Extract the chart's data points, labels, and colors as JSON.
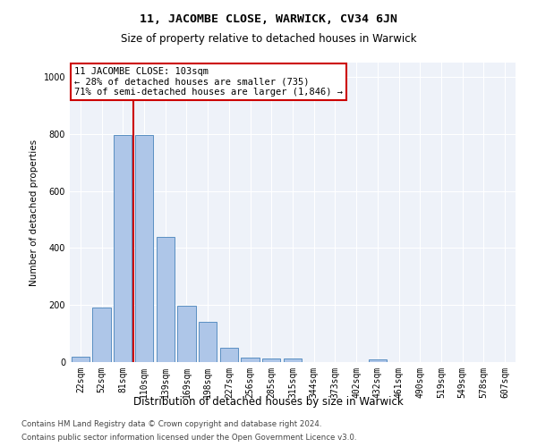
{
  "title1": "11, JACOMBE CLOSE, WARWICK, CV34 6JN",
  "title2": "Size of property relative to detached houses in Warwick",
  "xlabel": "Distribution of detached houses by size in Warwick",
  "ylabel": "Number of detached properties",
  "bins": [
    "22sqm",
    "52sqm",
    "81sqm",
    "110sqm",
    "139sqm",
    "169sqm",
    "198sqm",
    "227sqm",
    "256sqm",
    "285sqm",
    "315sqm",
    "344sqm",
    "373sqm",
    "402sqm",
    "432sqm",
    "461sqm",
    "490sqm",
    "519sqm",
    "549sqm",
    "578sqm",
    "607sqm"
  ],
  "values": [
    18,
    190,
    795,
    795,
    440,
    197,
    142,
    50,
    16,
    12,
    12,
    0,
    0,
    0,
    10,
    0,
    0,
    0,
    0,
    0,
    0
  ],
  "bar_color": "#aec6e8",
  "bar_edge_color": "#5a8fc2",
  "annotation_line1": "11 JACOMBE CLOSE: 103sqm",
  "annotation_line2": "← 28% of detached houses are smaller (735)",
  "annotation_line3": "71% of semi-detached houses are larger (1,846) →",
  "annotation_box_color": "#ffffff",
  "annotation_box_edge": "#cc0000",
  "vline_color": "#cc0000",
  "vline_pos": 2.5,
  "footer1": "Contains HM Land Registry data © Crown copyright and database right 2024.",
  "footer2": "Contains public sector information licensed under the Open Government Licence v3.0.",
  "ylim": [
    0,
    1050
  ],
  "background_color": "#eef2f9"
}
